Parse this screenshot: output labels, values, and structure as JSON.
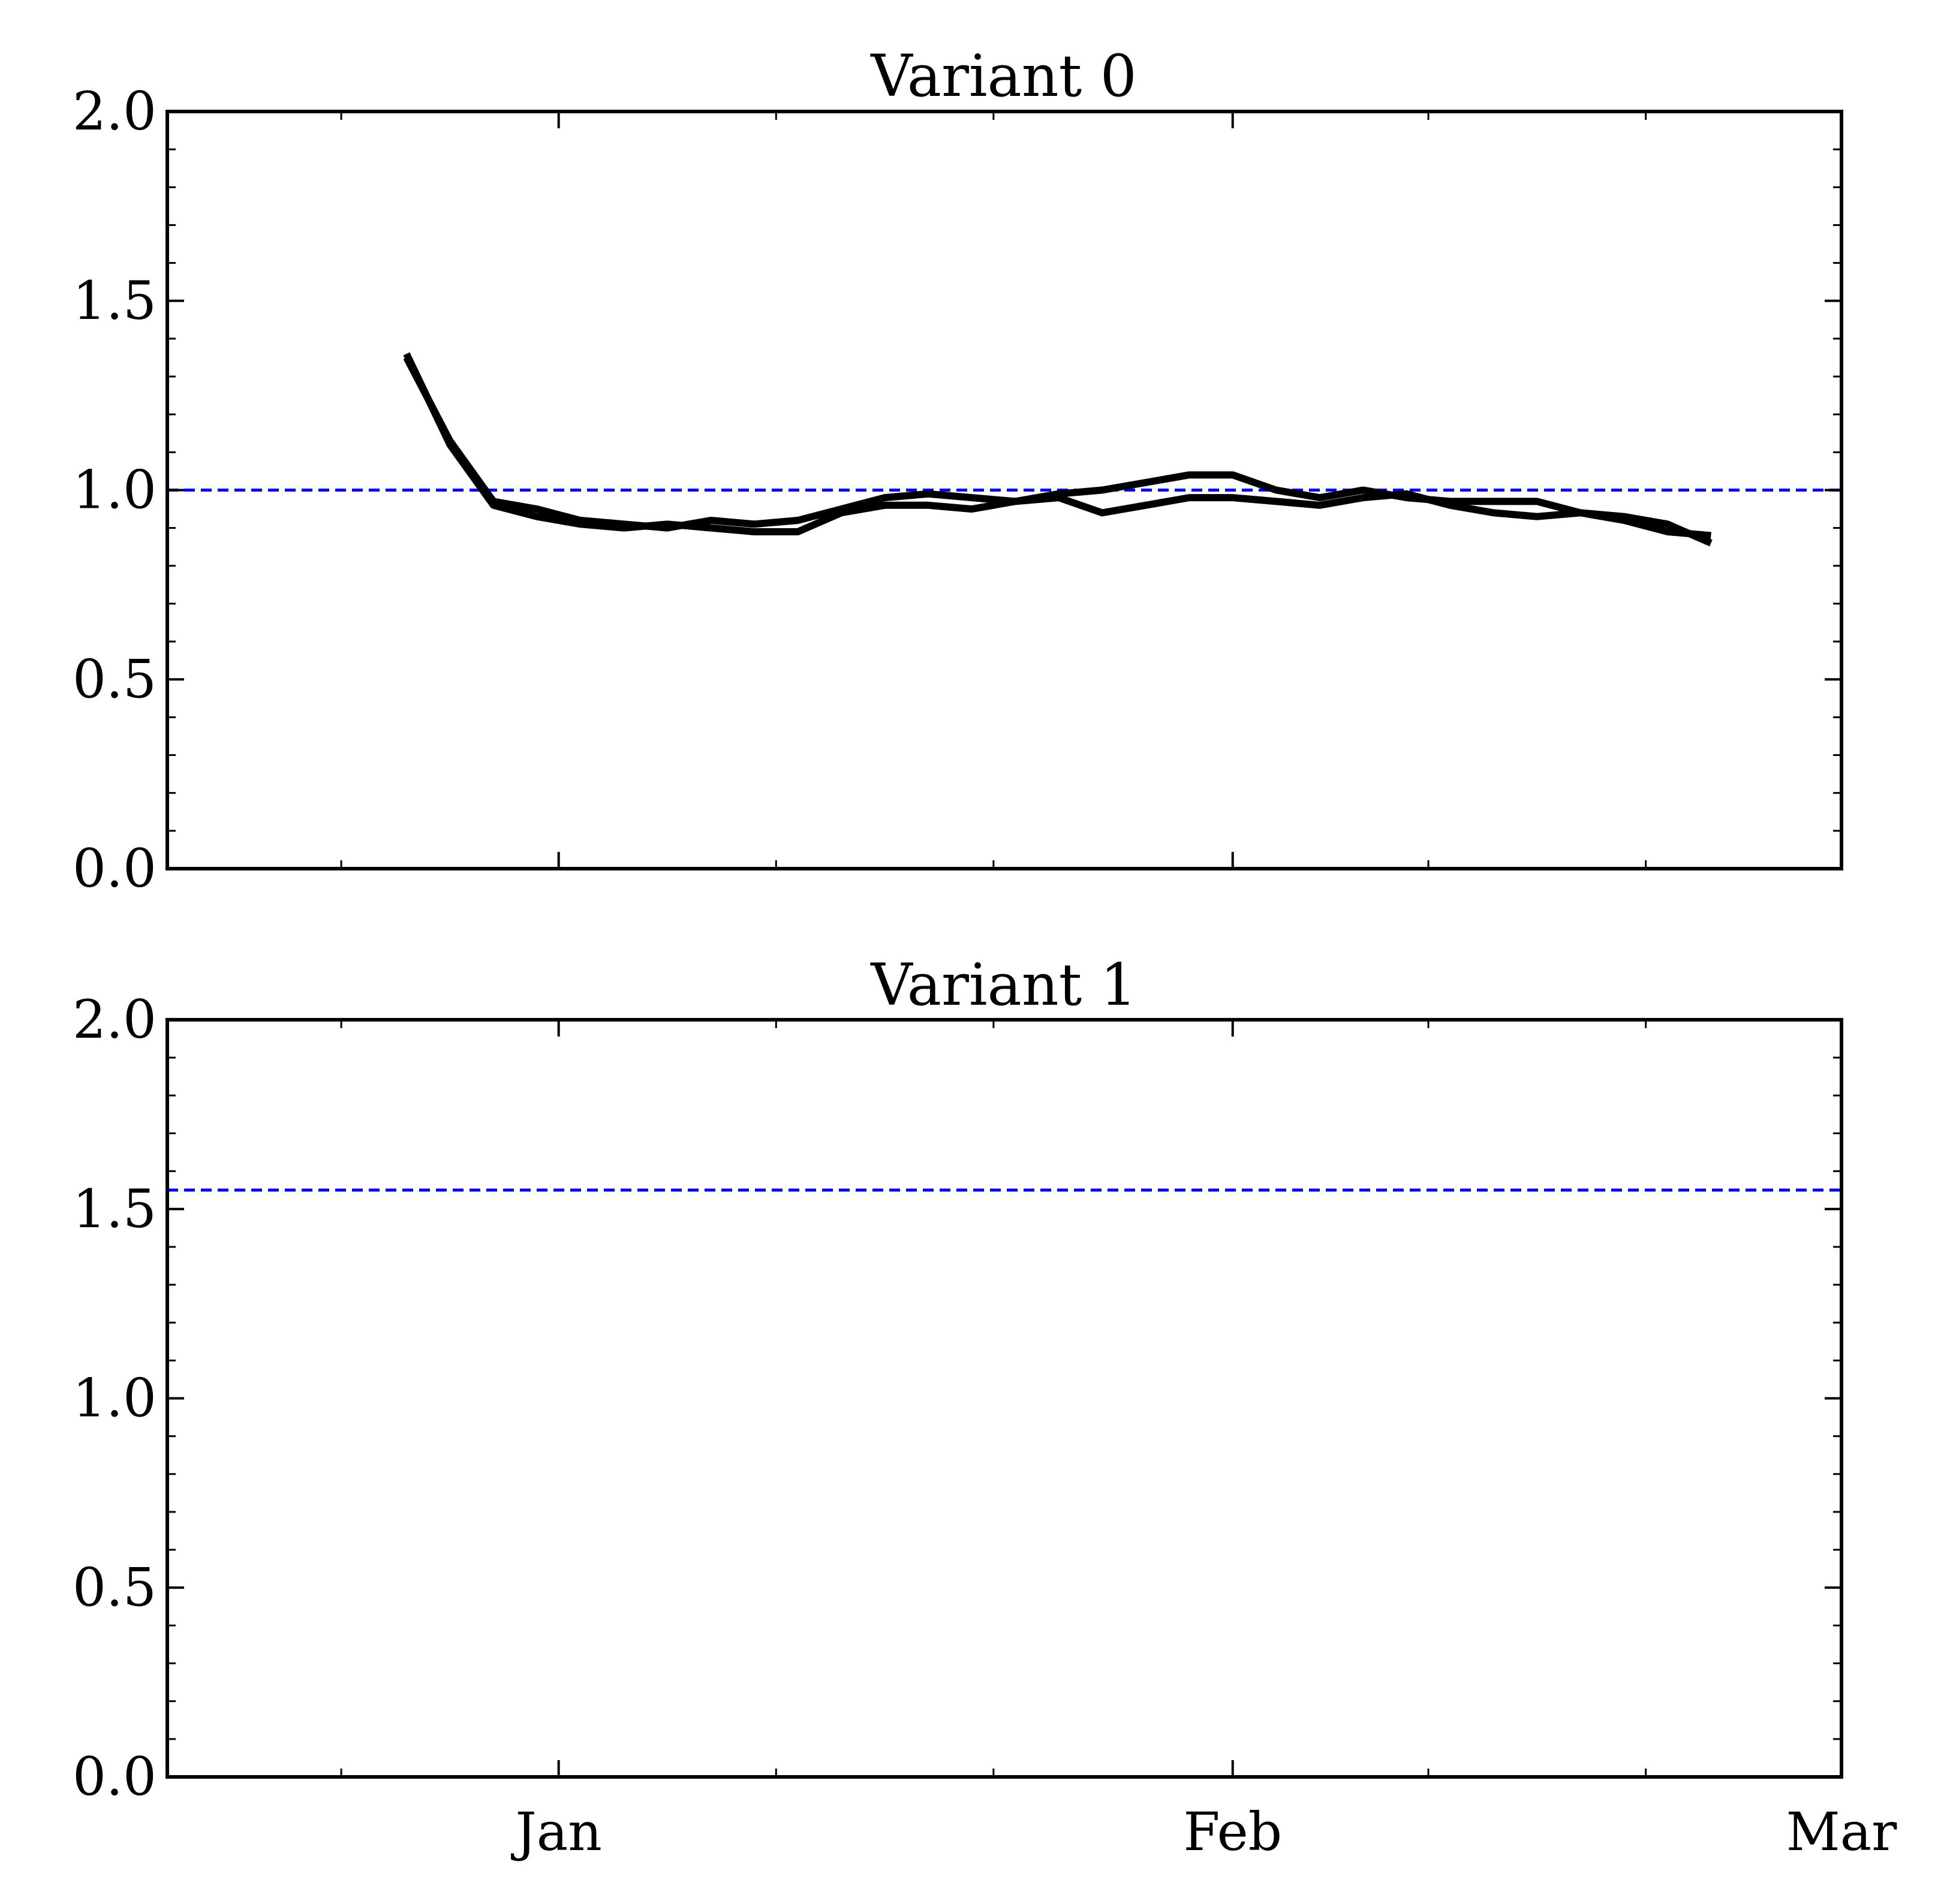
{
  "chart_data": [
    {
      "type": "line",
      "title": "Variant 0",
      "xlabel": "",
      "ylabel": "",
      "ylim": [
        0,
        2
      ],
      "yticks": [
        "0.0",
        "0.5",
        "1.0",
        "1.5",
        "2.0"
      ],
      "y_minor_step": 0.1,
      "xticks": [
        "Jan",
        "Feb",
        "Mar"
      ],
      "x_tick_labels_shown": false,
      "xlim": [
        "2020-12-14",
        "2021-03-01"
      ],
      "reference_line": {
        "y": 1.0,
        "style": "dashed",
        "color": "#0000ee"
      },
      "line_color": "#000000",
      "grid": false,
      "series": [
        {
          "x": [
            "2020-12-25",
            "2020-12-27",
            "2020-12-29",
            "2020-12-31",
            "2021-01-02",
            "2021-01-04",
            "2021-01-06",
            "2021-01-08",
            "2021-01-10",
            "2021-01-12",
            "2021-01-14",
            "2021-01-16",
            "2021-01-18",
            "2021-01-20",
            "2021-01-22",
            "2021-01-24",
            "2021-01-26",
            "2021-01-28",
            "2021-01-30",
            "2021-02-01",
            "2021-02-03",
            "2021-02-05",
            "2021-02-07",
            "2021-02-09",
            "2021-02-11",
            "2021-02-13",
            "2021-02-15",
            "2021-02-17",
            "2021-02-19",
            "2021-02-21",
            "2021-02-23"
          ],
          "y": [
            1.36,
            1.12,
            0.96,
            0.93,
            0.91,
            0.9,
            0.91,
            0.9,
            0.89,
            0.89,
            0.94,
            0.96,
            0.96,
            0.95,
            0.97,
            0.98,
            0.94,
            0.96,
            0.98,
            0.98,
            0.97,
            0.96,
            0.98,
            0.99,
            0.96,
            0.94,
            0.93,
            0.94,
            0.93,
            0.91,
            0.86
          ]
        },
        {
          "x": [
            "2020-12-25",
            "2020-12-27",
            "2020-12-29",
            "2020-12-31",
            "2021-01-02",
            "2021-01-04",
            "2021-01-06",
            "2021-01-08",
            "2021-01-10",
            "2021-01-12",
            "2021-01-14",
            "2021-01-16",
            "2021-01-18",
            "2021-01-20",
            "2021-01-22",
            "2021-01-24",
            "2021-01-26",
            "2021-01-28",
            "2021-01-30",
            "2021-02-01",
            "2021-02-03",
            "2021-02-05",
            "2021-02-07",
            "2021-02-09",
            "2021-02-11",
            "2021-02-13",
            "2021-02-15",
            "2021-02-17",
            "2021-02-19",
            "2021-02-21",
            "2021-02-23"
          ],
          "y": [
            1.35,
            1.13,
            0.97,
            0.95,
            0.92,
            0.91,
            0.9,
            0.92,
            0.91,
            0.92,
            0.95,
            0.98,
            0.99,
            0.98,
            0.97,
            0.99,
            1.0,
            1.02,
            1.04,
            1.04,
            1.0,
            0.98,
            1.0,
            0.98,
            0.97,
            0.97,
            0.97,
            0.94,
            0.92,
            0.89,
            0.88
          ]
        }
      ]
    },
    {
      "type": "line",
      "title": "Variant 1",
      "xlabel": "",
      "ylabel": "",
      "ylim": [
        0,
        2
      ],
      "yticks": [
        "0.0",
        "0.5",
        "1.0",
        "1.5",
        "2.0"
      ],
      "y_minor_step": 0.1,
      "xticks": [
        "Jan",
        "Feb",
        "Mar"
      ],
      "x_tick_labels_shown": true,
      "xlim": [
        "2020-12-14",
        "2021-03-01"
      ],
      "reference_line": {
        "y": 1.55,
        "style": "dashed",
        "color": "#0000ee"
      },
      "line_color": "#000000",
      "grid": false,
      "series": []
    }
  ]
}
